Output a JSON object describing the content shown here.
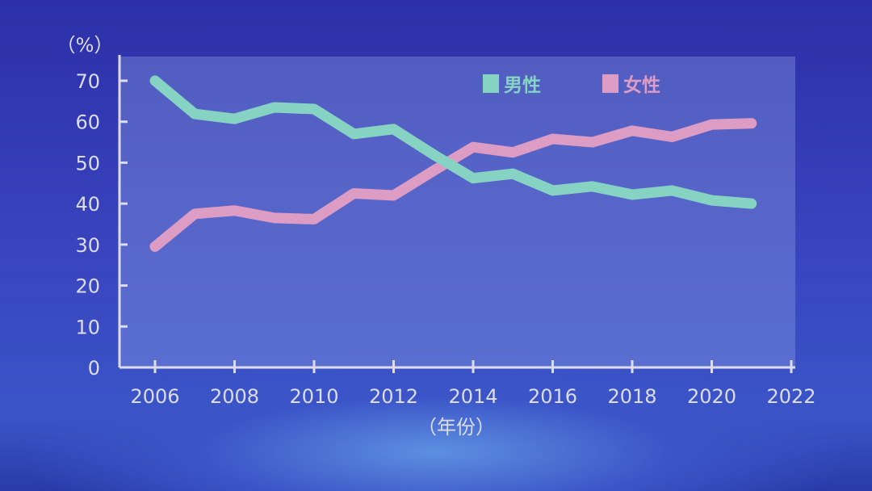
{
  "chart_data": {
    "type": "line",
    "ylabel": "（%）",
    "xlabel": "（年份）",
    "ylim": [
      0,
      70
    ],
    "xlim": [
      2006,
      2022
    ],
    "y_ticks": [
      0,
      10,
      20,
      30,
      40,
      50,
      60,
      70
    ],
    "x_ticks": [
      2006,
      2008,
      2010,
      2012,
      2014,
      2016,
      2018,
      2020,
      2022
    ],
    "legend_position": "top-right",
    "grid": false,
    "x": [
      2006,
      2007,
      2008,
      2009,
      2010,
      2011,
      2012,
      2013,
      2014,
      2015,
      2016,
      2017,
      2018,
      2019,
      2020,
      2021
    ],
    "series": [
      {
        "name": "男性",
        "color": "#86d3c4",
        "values": [
          70,
          61.9,
          60.7,
          63.5,
          63.1,
          57,
          58.2,
          52,
          46.2,
          47.3,
          43.2,
          44.2,
          42.2,
          43.2,
          40.8,
          40
        ]
      },
      {
        "name": "女性",
        "color": "#dc9cc4",
        "values": [
          29.5,
          37.5,
          38.3,
          36.5,
          36.2,
          42.5,
          42,
          48,
          53.8,
          52.5,
          55.8,
          55,
          57.8,
          56.3,
          59.3,
          59.6
        ]
      }
    ]
  }
}
